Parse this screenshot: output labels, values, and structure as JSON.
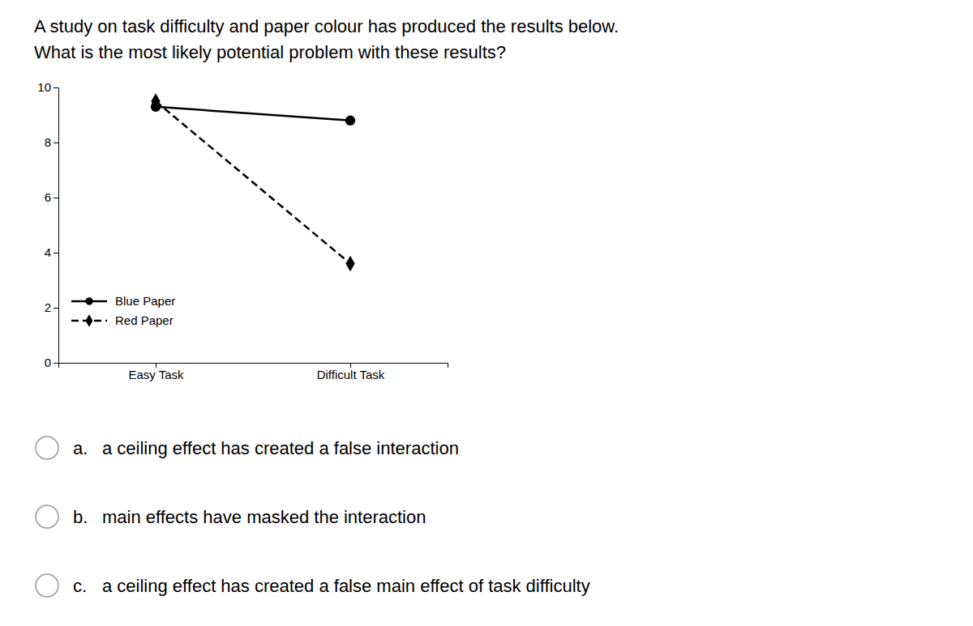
{
  "chart_data": {
    "type": "line",
    "title": "A study on task difficulty and paper colour has produced the results below.",
    "subtitle": "What is the most likely potential problem with these results?",
    "categories": [
      "Easy Task",
      "Difficult Task"
    ],
    "series": [
      {
        "name": "Blue Paper",
        "color": "#000000",
        "line_style": "solid",
        "marker": "circle",
        "values": [
          9.3,
          8.8
        ]
      },
      {
        "name": "Red Paper",
        "color": "#000000",
        "line_style": "dashed",
        "marker": "diamond",
        "values": [
          9.5,
          3.6
        ]
      }
    ],
    "ylim": [
      0,
      10
    ],
    "yticks": [
      0,
      2,
      4,
      6,
      8,
      10
    ],
    "grid": false,
    "legend": "lower left",
    "annotations": [
      {
        "label": "a.",
        "text": "a ceiling effect has created a false interaction"
      },
      {
        "label": "b.",
        "text": "main effects have masked the interaction"
      },
      {
        "label": "c.",
        "text": "a ceiling effect has created a false main effect of task difficulty"
      }
    ]
  }
}
